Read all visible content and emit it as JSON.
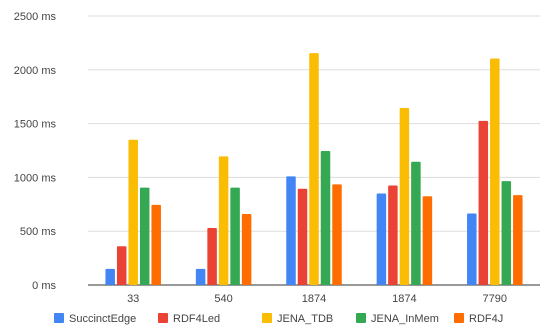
{
  "chart_data": {
    "type": "bar",
    "title": "",
    "xlabel": "",
    "ylabel": "",
    "unit_suffix": " ms",
    "ylim": [
      0,
      2500
    ],
    "yticks": [
      0,
      500,
      1000,
      1500,
      2000,
      2500
    ],
    "categories": [
      "33",
      "540",
      "1874",
      "1874",
      "7790"
    ],
    "series": [
      {
        "name": "SuccinctEdge",
        "color": "#4285f4",
        "values": [
          150,
          150,
          1010,
          850,
          665
        ]
      },
      {
        "name": "RDF4Led",
        "color": "#ea4335",
        "values": [
          360,
          530,
          895,
          925,
          1525
        ]
      },
      {
        "name": "JENA_TDB",
        "color": "#fbbc04",
        "values": [
          1350,
          1195,
          2155,
          1645,
          2105
        ]
      },
      {
        "name": "JENA_InMem",
        "color": "#34a853",
        "values": [
          905,
          905,
          1245,
          1145,
          965
        ]
      },
      {
        "name": "RDF4J",
        "color": "#ff6d01",
        "values": [
          745,
          660,
          935,
          825,
          835
        ]
      }
    ],
    "grid": true,
    "legend_position": "bottom"
  }
}
